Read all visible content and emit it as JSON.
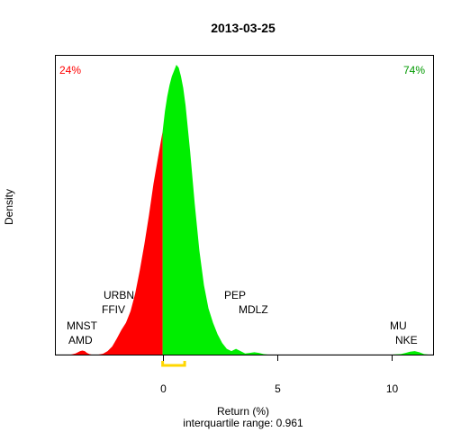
{
  "chart_data": {
    "type": "area",
    "title": "2013-03-25",
    "xlabel": "Return (%)",
    "ylabel": "Density",
    "subtitle": "interquartile range: 0.961",
    "xlim": [
      -4.7,
      11.8
    ],
    "ylim": [
      0,
      1
    ],
    "x_ticks": [
      0,
      5,
      10
    ],
    "grid": false,
    "pct_negative": "24%",
    "pct_positive": "74%",
    "colors": {
      "negative": "#ff0000",
      "positive": "#00ee00",
      "iqr": "#ffd700",
      "baseline": "#bebebe"
    },
    "density": {
      "x": [
        -4.0,
        -3.8,
        -3.6,
        -3.5,
        -3.4,
        -3.3,
        -3.2,
        -3.1,
        -3.0,
        -2.8,
        -2.6,
        -2.4,
        -2.2,
        -2.0,
        -1.8,
        -1.6,
        -1.4,
        -1.2,
        -1.0,
        -0.8,
        -0.6,
        -0.4,
        -0.2,
        0.0,
        0.1,
        0.2,
        0.3,
        0.4,
        0.5,
        0.6,
        0.7,
        0.8,
        0.9,
        1.0,
        1.2,
        1.4,
        1.6,
        1.8,
        2.0,
        2.2,
        2.4,
        2.6,
        2.8,
        3.0,
        3.2,
        3.4,
        3.6,
        3.8,
        4.0,
        4.2,
        4.4,
        4.6,
        5.0,
        6.0,
        8.0,
        10.0,
        10.4,
        10.6,
        10.8,
        11.0,
        11.2,
        11.4,
        11.6
      ],
      "y": [
        0.0,
        0.004,
        0.012,
        0.014,
        0.012,
        0.006,
        0.002,
        0.0,
        0.0,
        0.0,
        0.003,
        0.012,
        0.028,
        0.055,
        0.085,
        0.11,
        0.15,
        0.21,
        0.29,
        0.38,
        0.48,
        0.59,
        0.68,
        0.77,
        0.84,
        0.89,
        0.93,
        0.96,
        0.98,
        1.0,
        0.99,
        0.96,
        0.92,
        0.86,
        0.7,
        0.52,
        0.36,
        0.24,
        0.16,
        0.11,
        0.07,
        0.04,
        0.02,
        0.012,
        0.02,
        0.012,
        0.004,
        0.006,
        0.008,
        0.006,
        0.002,
        0.0,
        0.0,
        0.0,
        0.0,
        0.0,
        0.002,
        0.006,
        0.01,
        0.012,
        0.008,
        0.002,
        0.0
      ]
    },
    "iqr": [
      0.0,
      0.961
    ],
    "annotations": {
      "bottom_left": [
        "MNST",
        "AMD"
      ],
      "mid_left": [
        "URBN",
        "FFIV"
      ],
      "mid_right": [
        "PEP",
        "MDLZ"
      ],
      "bottom_right": [
        "MU",
        "NKE"
      ]
    }
  }
}
